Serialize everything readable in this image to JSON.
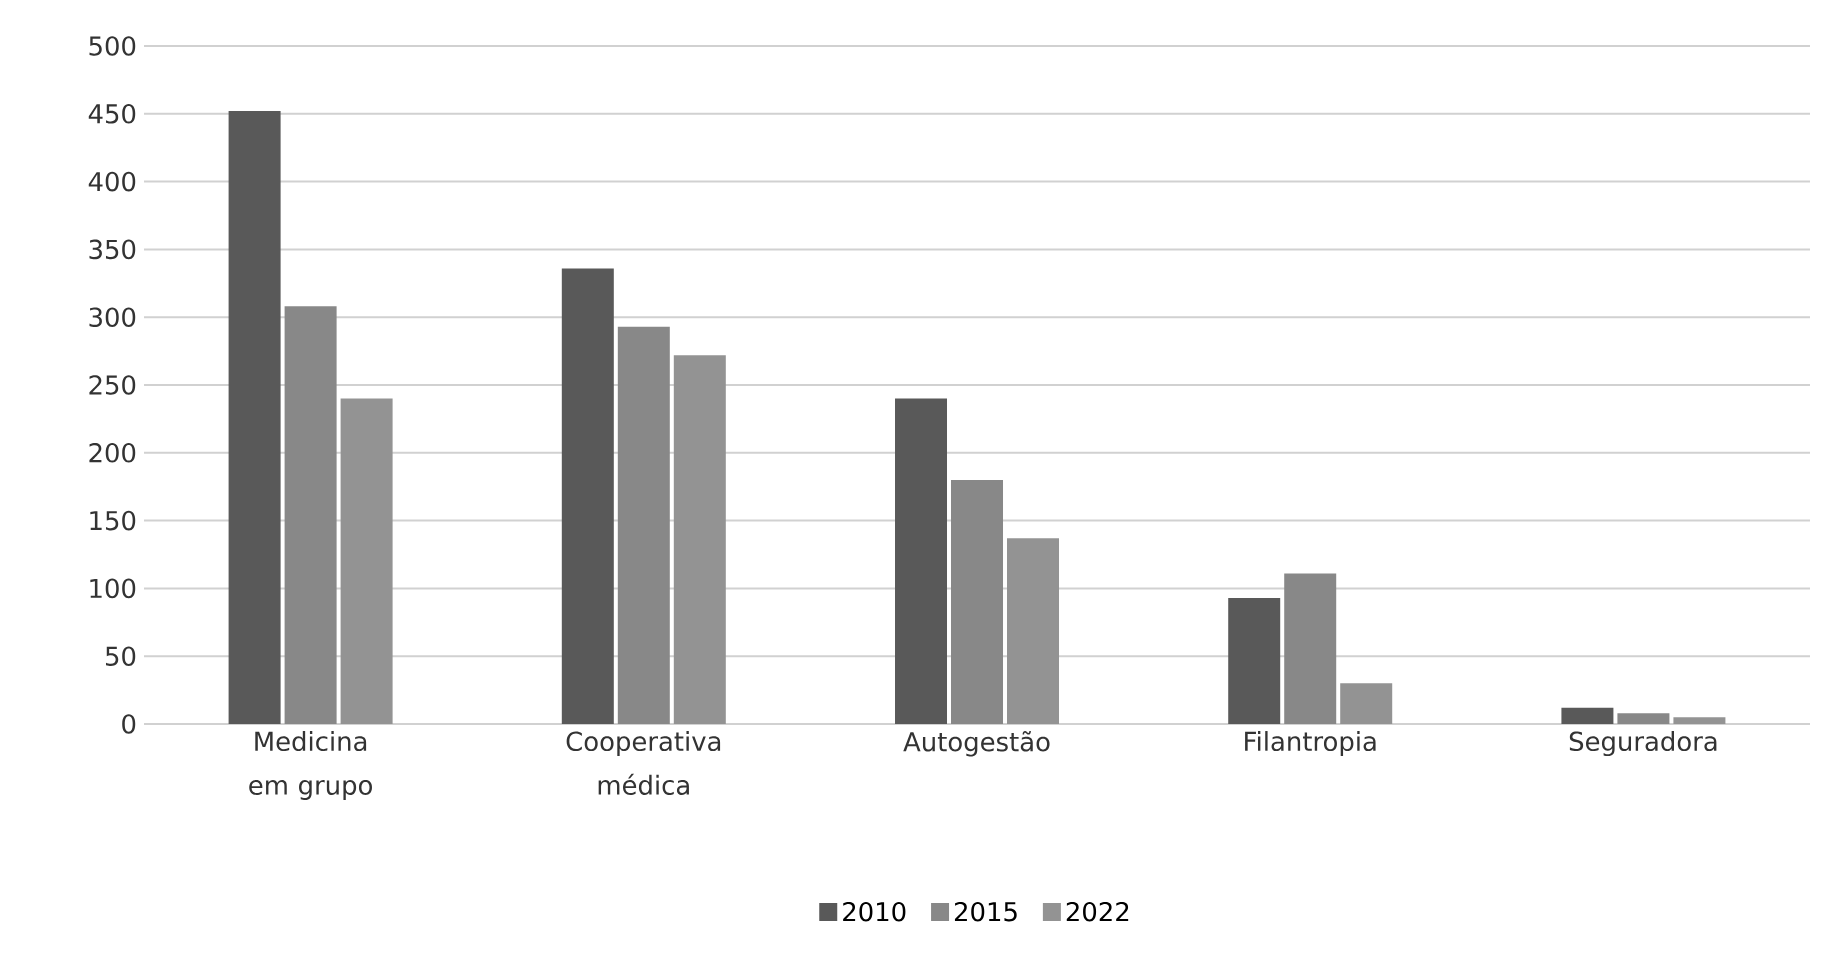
{
  "chart_data": {
    "type": "bar",
    "categories": [
      "Medicina em grupo",
      "Cooperativa médica",
      "Autogestão",
      "Filantropia",
      "Seguradora"
    ],
    "series": [
      {
        "name": "2010",
        "color": "#595959",
        "values": [
          452,
          336,
          240,
          93,
          12
        ]
      },
      {
        "name": "2015",
        "color": "#888888",
        "values": [
          308,
          293,
          180,
          111,
          8
        ]
      },
      {
        "name": "2022",
        "color": "#939393",
        "values": [
          240,
          272,
          137,
          30,
          5
        ]
      }
    ],
    "ylim": [
      0,
      500
    ],
    "yticks": [
      0,
      50,
      100,
      150,
      200,
      250,
      300,
      350,
      400,
      450,
      500
    ],
    "grid": "y",
    "legend": "bottom"
  }
}
